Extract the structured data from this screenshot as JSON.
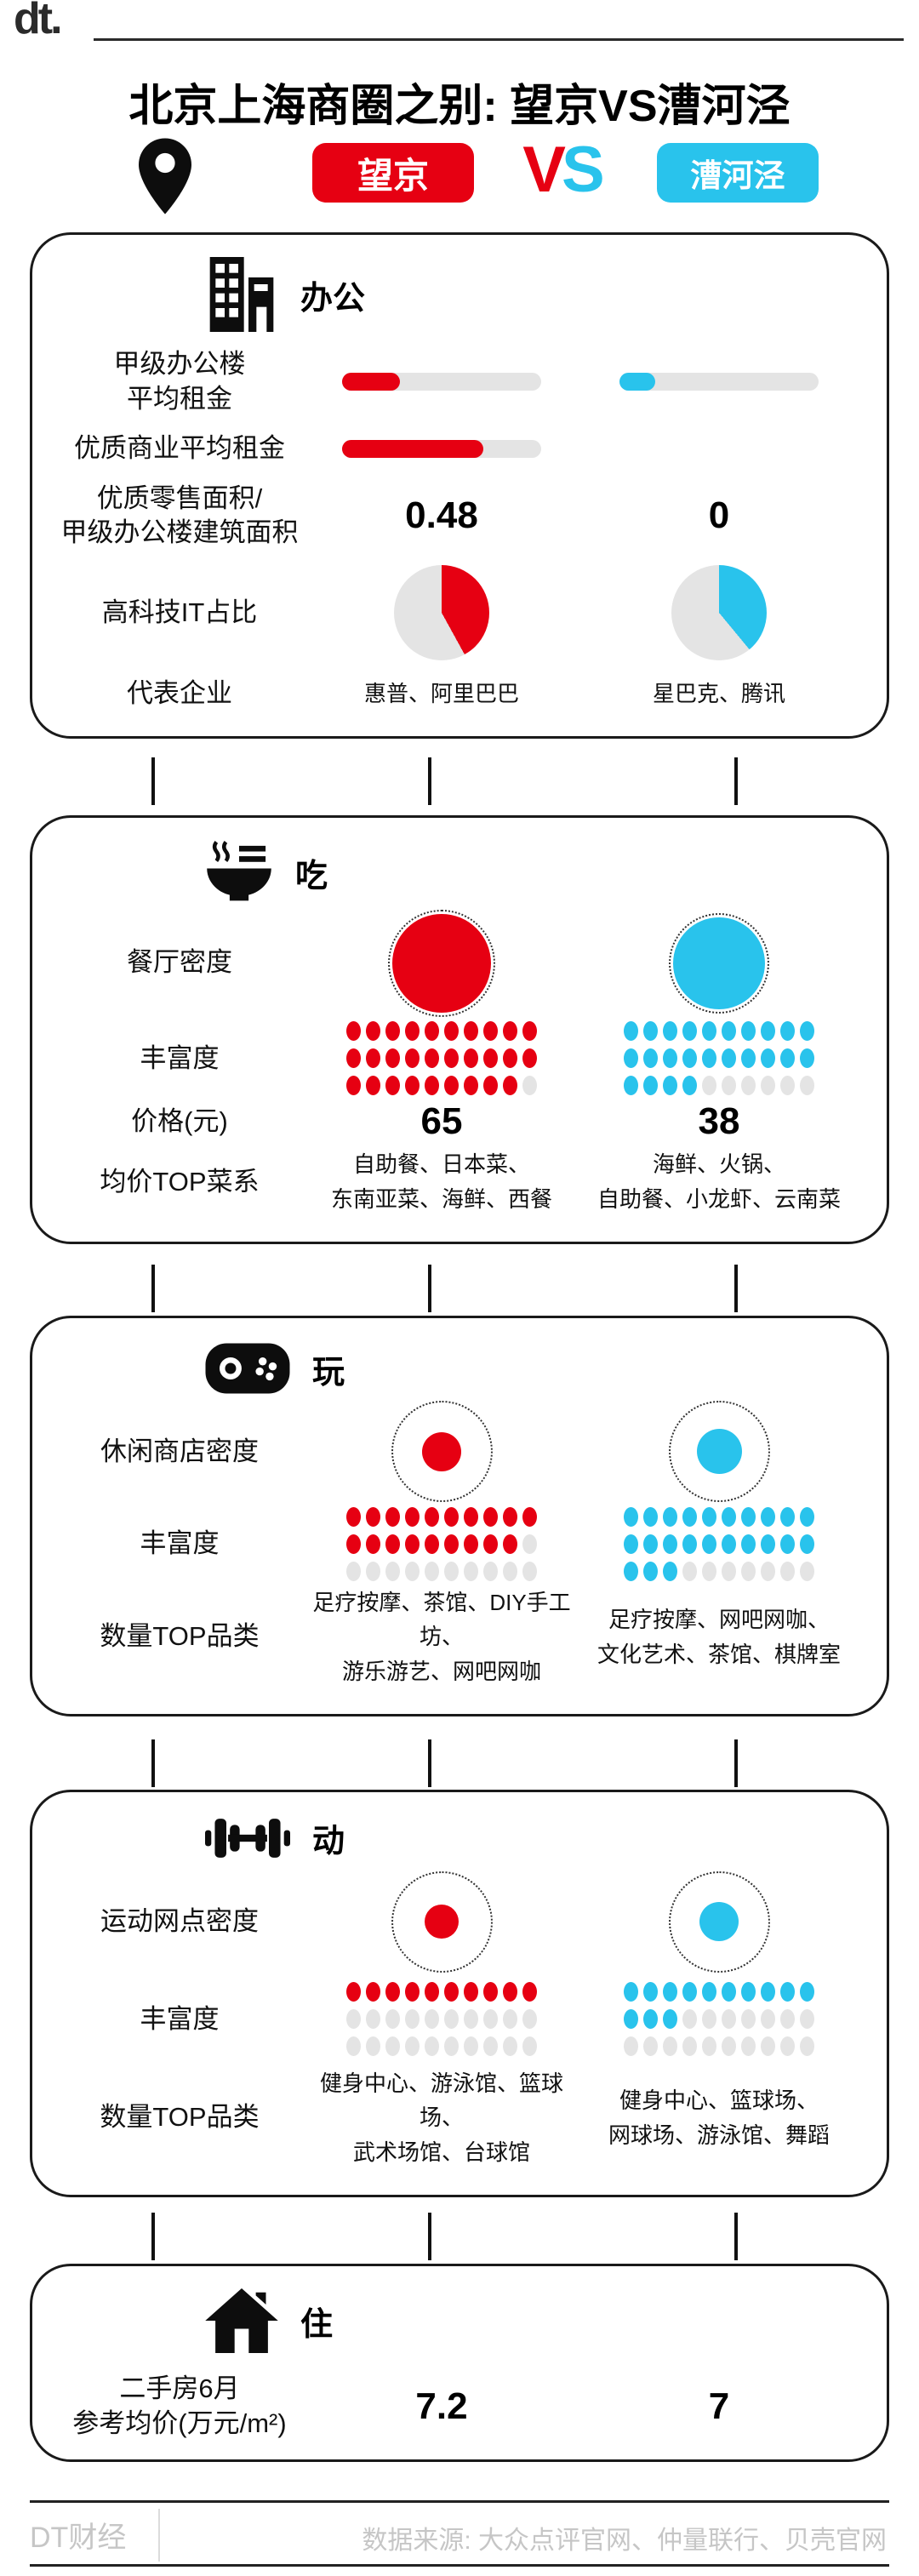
{
  "header": {
    "logo": "dt.",
    "title": "北京上海商圈之别: 望京VS漕河泾",
    "vs": {
      "v": "V",
      "s": "S"
    },
    "badges": {
      "left": {
        "label": "望京",
        "color": "#e60012"
      },
      "right": {
        "label": "漕河泾",
        "color": "#29c3ec"
      }
    },
    "icons": {
      "pin": "map-pin"
    }
  },
  "colors": {
    "red": "#e60012",
    "blue": "#29c3ec",
    "gray": "#e4e4e4",
    "ink": "#1a1a1a"
  },
  "cards": [
    {
      "section": "办公",
      "icon": "office-buildings",
      "rows": [
        {
          "label": "甲级办公楼\n平均租金",
          "type": "bars",
          "left": {
            "percent": 29
          },
          "right": {
            "percent": 18
          }
        },
        {
          "label": "优质商业平均租金",
          "type": "bars",
          "left": {
            "percent": 71
          },
          "right": null
        },
        {
          "label": "优质零售面积/\n甲级办公楼建筑面积",
          "type": "values",
          "left": "0.48",
          "right": "0"
        },
        {
          "label": "高科技IT占比",
          "type": "pies",
          "left": {
            "percent": 42
          },
          "right": {
            "percent": 39
          }
        },
        {
          "label": "代表企业",
          "type": "texts",
          "left": "惠普、阿里巴巴",
          "right": "星巴克、腾讯"
        }
      ]
    },
    {
      "section": "吃",
      "icon": "rice-bowl",
      "rows": [
        {
          "label": "餐厅密度",
          "type": "solid-circles",
          "left": {
            "diameter": 116
          },
          "right": {
            "diameter": 108
          }
        },
        {
          "label": "丰富度",
          "type": "dots",
          "left": {
            "rows": [
              10,
              10,
              9
            ]
          },
          "right": {
            "rows": [
              10,
              10,
              4
            ]
          }
        },
        {
          "label": "价格(元)",
          "type": "values",
          "left": "65",
          "right": "38"
        },
        {
          "label": "均价TOP菜系",
          "type": "texts",
          "left": "自助餐、日本菜、\n东南亚菜、海鲜、西餐",
          "right": "海鲜、火锅、\n自助餐、小龙虾、云南菜"
        }
      ]
    },
    {
      "section": "玩",
      "icon": "gamepad",
      "rows": [
        {
          "label": "休闲商店密度",
          "type": "ring-circles",
          "left": {
            "ring": 115,
            "dot": 46
          },
          "right": {
            "ring": 115,
            "dot": 53
          }
        },
        {
          "label": "丰富度",
          "type": "dots",
          "left": {
            "rows": [
              10,
              9,
              0
            ]
          },
          "right": {
            "rows": [
              10,
              10,
              3
            ]
          }
        },
        {
          "label": "数量TOP品类",
          "type": "texts",
          "left": "足疗按摩、茶馆、DIY手工坊、\n游乐游艺、网吧网咖",
          "right": "足疗按摩、网吧网咖、\n文化艺术、茶馆、棋牌室"
        }
      ]
    },
    {
      "section": "动",
      "icon": "dumbbell",
      "rows": [
        {
          "label": "运动网点密度",
          "type": "ring-circles",
          "left": {
            "ring": 115,
            "dot": 40
          },
          "right": {
            "ring": 115,
            "dot": 46
          }
        },
        {
          "label": "丰富度",
          "type": "dots",
          "left": {
            "rows": [
              10,
              0,
              0
            ]
          },
          "right": {
            "rows": [
              10,
              3,
              0
            ]
          }
        },
        {
          "label": "数量TOP品类",
          "type": "texts",
          "left": "健身中心、游泳馆、篮球场、\n武术场馆、台球馆",
          "right": "健身中心、篮球场、\n网球场、游泳馆、舞蹈"
        }
      ]
    },
    {
      "section": "住",
      "icon": "house",
      "rows": [
        {
          "label": "二手房6月\n参考均价(万元/m²)",
          "type": "values",
          "left": "7.2",
          "right": "7"
        }
      ]
    }
  ],
  "footer": {
    "brand": "DT财经",
    "source": "数据来源: 大众点评官网、仲量联行、贝壳官网"
  },
  "chart_data": [
    {
      "type": "bar",
      "title": "办公 租金对比（条长为相对占比，无绝对数值标注）",
      "categories": [
        "甲级办公楼平均租金",
        "优质商业平均租金"
      ],
      "series": [
        {
          "name": "望京",
          "values": [
            0.29,
            0.71
          ]
        },
        {
          "name": "漕河泾",
          "values": [
            0.18,
            0
          ]
        }
      ]
    },
    {
      "type": "pie",
      "title": "高科技IT占比（估读）",
      "series": [
        {
          "name": "望京",
          "value": 0.42
        },
        {
          "name": "漕河泾",
          "value": 0.39
        }
      ]
    },
    {
      "type": "table",
      "title": "办公",
      "rows": [
        [
          "优质零售面积/甲级办公楼建筑面积",
          "0.48",
          "0"
        ],
        [
          "代表企业",
          "惠普、阿里巴巴",
          "星巴克、腾讯"
        ]
      ]
    },
    {
      "type": "table",
      "title": "吃",
      "rows": [
        [
          "餐厅密度（圆面积相对大小）",
          "大",
          "略小"
        ],
        [
          "丰富度（点阵 x/30）",
          "29",
          "24"
        ],
        [
          "价格(元)",
          "65",
          "38"
        ],
        [
          "均价TOP菜系",
          "自助餐、日本菜、东南亚菜、海鲜、西餐",
          "海鲜、火锅、自助餐、小龙虾、云南菜"
        ]
      ]
    },
    {
      "type": "table",
      "title": "玩",
      "rows": [
        [
          "休闲商店密度（内圆相对大小）",
          "小",
          "略大"
        ],
        [
          "丰富度（点阵 x/30）",
          "19",
          "23"
        ],
        [
          "数量TOP品类",
          "足疗按摩、茶馆、DIY手工坊、游乐游艺、网吧网咖",
          "足疗按摩、网吧网咖、文化艺术、茶馆、棋牌室"
        ]
      ]
    },
    {
      "type": "table",
      "title": "动",
      "rows": [
        [
          "运动网点密度（内圆相对大小）",
          "小",
          "略大"
        ],
        [
          "丰富度（点阵 x/30）",
          "10",
          "13"
        ],
        [
          "数量TOP品类",
          "健身中心、游泳馆、篮球场、武术场馆、台球馆",
          "健身中心、篮球场、网球场、游泳馆、舞蹈"
        ]
      ]
    },
    {
      "type": "table",
      "title": "住",
      "rows": [
        [
          "二手房6月参考均价(万元/m²)",
          "7.2",
          "7"
        ]
      ]
    }
  ]
}
